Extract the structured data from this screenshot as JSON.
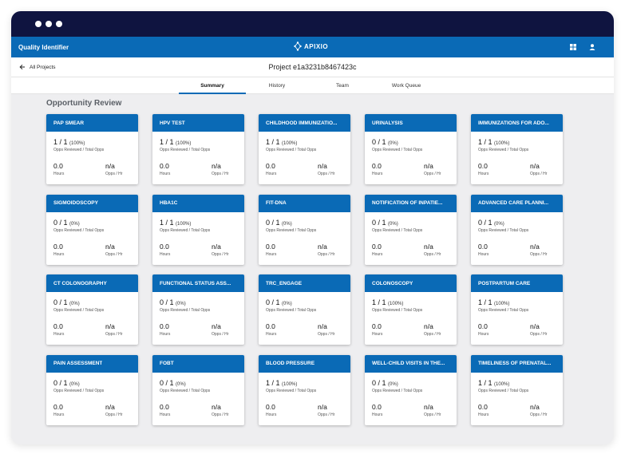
{
  "app": {
    "title": "Quality Identifier",
    "logo_text": "APIXIO"
  },
  "icons": {
    "grid": "apps-grid-icon",
    "user": "user-account-icon",
    "back": "arrow-left-icon"
  },
  "project": {
    "back_label": "All Projects",
    "title": "Project e1a3231b8467423c"
  },
  "tabs": [
    {
      "label": "Summary",
      "active": true
    },
    {
      "label": "History",
      "active": false
    },
    {
      "label": "Team",
      "active": false
    },
    {
      "label": "Work Queue",
      "active": false
    }
  ],
  "section_title": "Opportunity Review",
  "card_labels": {
    "subtitle": "Opps Reviewed / Total Opps",
    "hours": "Hours",
    "rate": "Opps / Hr"
  },
  "cards": [
    {
      "name": "PAP SMEAR",
      "ratio": "1 / 1",
      "pct": "(100%)",
      "hours": "0.0",
      "rate": "n/a"
    },
    {
      "name": "HPV TEST",
      "ratio": "1 / 1",
      "pct": "(100%)",
      "hours": "0.0",
      "rate": "n/a"
    },
    {
      "name": "CHILDHOOD IMMUNIZATIO...",
      "ratio": "1 / 1",
      "pct": "(100%)",
      "hours": "0.0",
      "rate": "n/a"
    },
    {
      "name": "URINALYSIS",
      "ratio": "0 / 1",
      "pct": "(0%)",
      "hours": "0.0",
      "rate": "n/a"
    },
    {
      "name": "IMMUNIZATIONS FOR ADO...",
      "ratio": "1 / 1",
      "pct": "(100%)",
      "hours": "0.0",
      "rate": "n/a"
    },
    {
      "name": "SIGMOIDOSCOPY",
      "ratio": "0 / 1",
      "pct": "(0%)",
      "hours": "0.0",
      "rate": "n/a"
    },
    {
      "name": "HBA1C",
      "ratio": "1 / 1",
      "pct": "(100%)",
      "hours": "0.0",
      "rate": "n/a"
    },
    {
      "name": "FIT-DNA",
      "ratio": "0 / 1",
      "pct": "(0%)",
      "hours": "0.0",
      "rate": "n/a"
    },
    {
      "name": "NOTIFICATION OF INPATIE...",
      "ratio": "0 / 1",
      "pct": "(0%)",
      "hours": "0.0",
      "rate": "n/a"
    },
    {
      "name": "ADVANCED CARE PLANNI...",
      "ratio": "0 / 1",
      "pct": "(0%)",
      "hours": "0.0",
      "rate": "n/a"
    },
    {
      "name": "CT COLONOGRAPHY",
      "ratio": "0 / 1",
      "pct": "(0%)",
      "hours": "0.0",
      "rate": "n/a"
    },
    {
      "name": "FUNCTIONAL STATUS ASS...",
      "ratio": "0 / 1",
      "pct": "(0%)",
      "hours": "0.0",
      "rate": "n/a"
    },
    {
      "name": "TRC_ENGAGE",
      "ratio": "0 / 1",
      "pct": "(0%)",
      "hours": "0.0",
      "rate": "n/a"
    },
    {
      "name": "COLONOSCOPY",
      "ratio": "1 / 1",
      "pct": "(100%)",
      "hours": "0.0",
      "rate": "n/a"
    },
    {
      "name": "POSTPARTUM CARE",
      "ratio": "1 / 1",
      "pct": "(100%)",
      "hours": "0.0",
      "rate": "n/a"
    },
    {
      "name": "PAIN ASSESSMENT",
      "ratio": "0 / 1",
      "pct": "(0%)",
      "hours": "0.0",
      "rate": "n/a"
    },
    {
      "name": "FOBT",
      "ratio": "0 / 1",
      "pct": "(0%)",
      "hours": "0.0",
      "rate": "n/a"
    },
    {
      "name": "BLOOD PRESSURE",
      "ratio": "1 / 1",
      "pct": "(100%)",
      "hours": "0.0",
      "rate": "n/a"
    },
    {
      "name": "WELL-CHILD VISITS IN THE...",
      "ratio": "0 / 1",
      "pct": "(0%)",
      "hours": "0.0",
      "rate": "n/a"
    },
    {
      "name": "TIMELINESS OF PRENATAL...",
      "ratio": "1 / 1",
      "pct": "(100%)",
      "hours": "0.0",
      "rate": "n/a"
    }
  ],
  "colors": {
    "brand_blue": "#0a6ab6",
    "chrome_navy": "#0f1440",
    "page_bg": "#eeeef0"
  }
}
